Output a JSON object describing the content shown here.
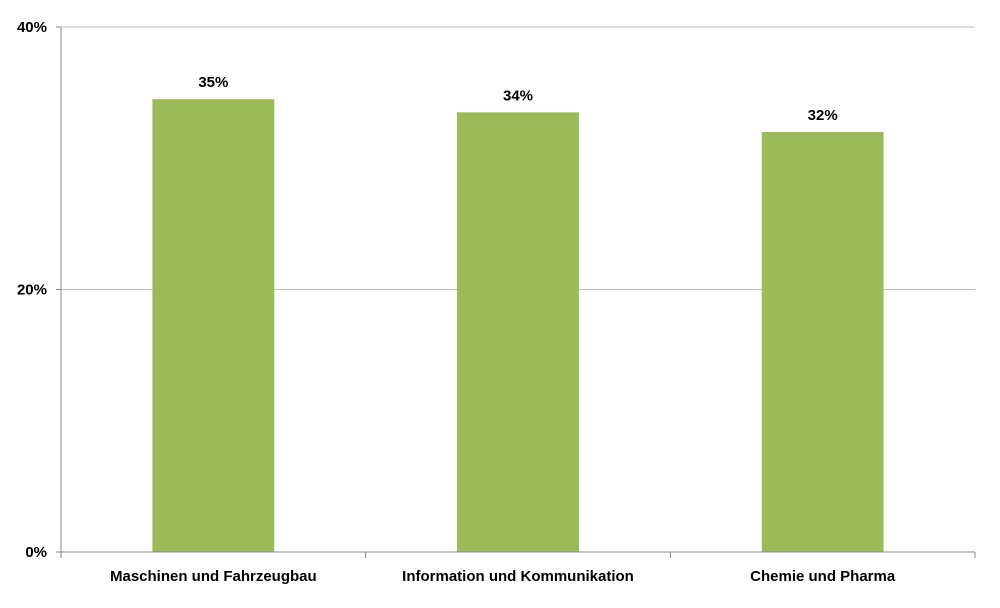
{
  "chart_data": {
    "type": "bar",
    "categories": [
      "Maschinen und Fahrzeugbau",
      "Information und Kommunikation",
      "Chemie und Pharma"
    ],
    "values": [
      34.5,
      33.5,
      32.0
    ],
    "data_labels": [
      "35%",
      "34%",
      "32%"
    ],
    "ylim": [
      0,
      40
    ],
    "yticks": [
      0,
      20,
      40
    ],
    "ytick_labels": [
      "0%",
      "20%",
      "40%"
    ],
    "title": "",
    "xlabel": "",
    "ylabel": "",
    "grid": true,
    "bar_color": "#9bbb59",
    "grid_color": "#bfbfbf",
    "axis_color": "#888888"
  }
}
